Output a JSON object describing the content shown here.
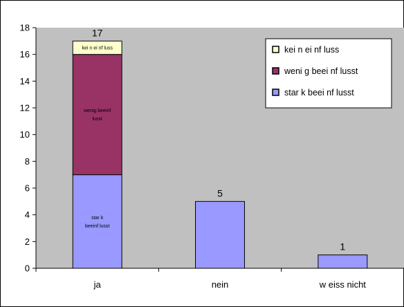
{
  "chart_data": {
    "type": "bar",
    "stacked": true,
    "categories": [
      "ja",
      "nein",
      "w eiss nicht"
    ],
    "series": [
      {
        "name": "star k beei nf lusst",
        "values": [
          7,
          5,
          1
        ],
        "color": "#9999ff",
        "segment_label": "star k beeinf lusst"
      },
      {
        "name": "weni g beei nf lusst",
        "values": [
          9,
          0,
          0
        ],
        "color": "#993366",
        "segment_label": "wenig beeinf lusst"
      },
      {
        "name": "kei n ei nf luss",
        "values": [
          1,
          0,
          0
        ],
        "color": "#ffffcc",
        "segment_label": "kei n ei nf luss"
      }
    ],
    "totals": [
      "17",
      "5",
      "1"
    ],
    "yticks": [
      "0",
      "2",
      "4",
      "6",
      "8",
      "10",
      "12",
      "14",
      "16",
      "18"
    ],
    "ylim": [
      0,
      18
    ],
    "grid": false,
    "legend_position": "top-right",
    "plot_background": "#c0c0c0",
    "title": "",
    "xlabel": "",
    "ylabel": ""
  }
}
